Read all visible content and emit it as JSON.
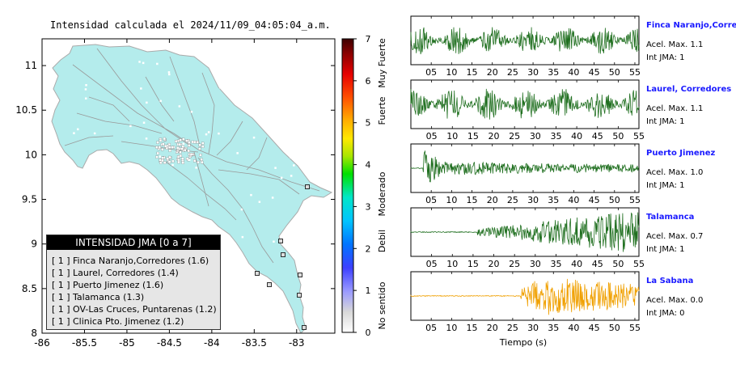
{
  "map": {
    "title": "Intensidad calculada el 2024/11/09_04:05:04_a.m.",
    "x_ticks": [
      "-86",
      "-85.5",
      "-85",
      "-84.5",
      "-84",
      "-83.5",
      "-83"
    ],
    "y_ticks": [
      "11",
      "10.5",
      "10",
      "9.5",
      "9",
      "8.5",
      "8"
    ],
    "colorbar_ticks": [
      "7",
      "6",
      "5",
      "4",
      "3",
      "2",
      "1",
      "0"
    ],
    "colorbar_labels": [
      "Muy Fuerte",
      "Fuerte",
      "Moderado",
      "Debil",
      "No sentido"
    ],
    "legend": {
      "title": "INTENSIDAD JMA [0 a 7]",
      "entries": [
        {
          "level": "[ 1 ]",
          "text": "Finca Naranjo,Corredores (1.6)"
        },
        {
          "level": "[ 1 ]",
          "text": "Laurel, Corredores (1.4)"
        },
        {
          "level": "[ 1 ]",
          "text": "Puerto Jimenez (1.6)"
        },
        {
          "level": "[ 1 ]",
          "text": "Talamanca (1.3)"
        },
        {
          "level": "[ 1 ]",
          "text": "OV-Las Cruces, Puntarenas (1.2)"
        },
        {
          "level": "[ 1 ]",
          "text": "Clinica Pto. Jimenez (1.2)"
        }
      ]
    },
    "colors": {
      "land": "#b4ecec",
      "roads": "#999999",
      "bar_top": "#3d0000"
    }
  },
  "chart_data": {
    "type": "line",
    "xlabel": "Tiempo (s)",
    "x_ticks": [
      "05",
      "10",
      "15",
      "20",
      "25",
      "30",
      "35",
      "40",
      "45",
      "50",
      "55"
    ],
    "stations": [
      {
        "name": "Finca Naranjo,Corredor",
        "acel": "Acel. Max. 1.1",
        "jma": "Int JMA: 1",
        "color": "#1f6f1f",
        "tmax": 56,
        "onset": 0,
        "amp": 0.65
      },
      {
        "name": "Laurel, Corredores",
        "acel": "Acel. Max. 1.1",
        "jma": "Int JMA: 1",
        "color": "#1f6f1f",
        "tmax": 55,
        "onset": 0,
        "amp": 0.75
      },
      {
        "name": "Puerto Jimenez",
        "acel": "Acel. Max. 1.0",
        "jma": "Int JMA: 1",
        "color": "#1f6f1f",
        "tmax": 56,
        "onset": 3,
        "amp": 0.9
      },
      {
        "name": "Talamanca",
        "acel": "Acel. Max. 0.7",
        "jma": "Int JMA: 1",
        "color": "#1f6f1f",
        "tmax": 55,
        "onset": 16,
        "amp": 0.9
      },
      {
        "name": "La Sabana",
        "acel": "Acel. Max. 0.0",
        "jma": "Int JMA: 0",
        "color": "#f0a000",
        "tmax": 56,
        "onset": 27,
        "amp": 0.85
      }
    ]
  }
}
